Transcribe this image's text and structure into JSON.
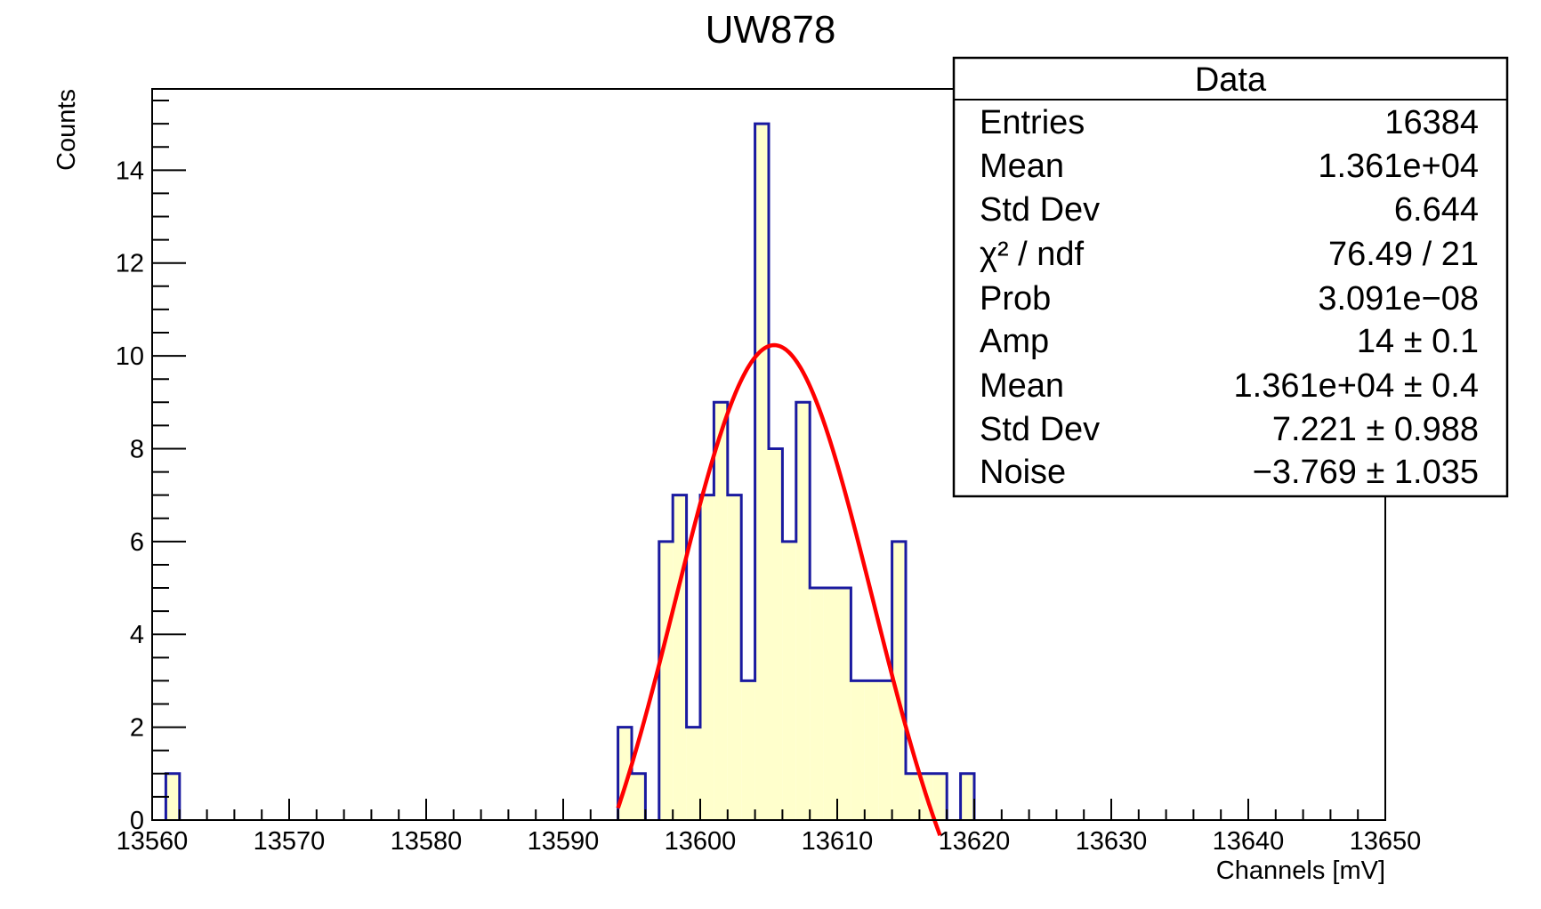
{
  "chart_data": {
    "type": "histogram",
    "title": "UW878",
    "xlabel": "Channels [mV]",
    "ylabel": "Counts",
    "xlim": [
      13560,
      13650
    ],
    "ylim": [
      0,
      15.75
    ],
    "x_ticks": [
      "13560",
      "13570",
      "13580",
      "13590",
      "13600",
      "13610",
      "13620",
      "13630",
      "13640",
      "13650"
    ],
    "y_ticks": [
      "0",
      "2",
      "4",
      "6",
      "8",
      "10",
      "12",
      "14"
    ],
    "bin_width": 1,
    "bins": [
      {
        "x": 13561,
        "count": 1
      },
      {
        "x": 13594,
        "count": 2
      },
      {
        "x": 13595,
        "count": 1
      },
      {
        "x": 13597,
        "count": 6
      },
      {
        "x": 13598,
        "count": 7
      },
      {
        "x": 13599,
        "count": 2
      },
      {
        "x": 13600,
        "count": 7
      },
      {
        "x": 13601,
        "count": 9
      },
      {
        "x": 13602,
        "count": 7
      },
      {
        "x": 13603,
        "count": 3
      },
      {
        "x": 13604,
        "count": 15
      },
      {
        "x": 13605,
        "count": 8
      },
      {
        "x": 13606,
        "count": 6
      },
      {
        "x": 13607,
        "count": 9
      },
      {
        "x": 13608,
        "count": 5
      },
      {
        "x": 13609,
        "count": 5
      },
      {
        "x": 13610,
        "count": 5
      },
      {
        "x": 13611,
        "count": 3
      },
      {
        "x": 13612,
        "count": 3
      },
      {
        "x": 13613,
        "count": 3
      },
      {
        "x": 13614,
        "count": 6
      },
      {
        "x": 13615,
        "count": 1
      },
      {
        "x": 13616,
        "count": 1
      },
      {
        "x": 13617,
        "count": 1
      },
      {
        "x": 13619,
        "count": 1
      }
    ],
    "fit": {
      "function": "gaussian + constant",
      "amp": 14,
      "mean": 13605.4,
      "sigma": 7.221,
      "noise": -3.769,
      "x_range": [
        13594,
        13617.5
      ]
    },
    "colors": {
      "hist_line": "#1a1aa0",
      "hist_fill": "#ffffcc",
      "fit": "#ff0000"
    },
    "legend_placement": "top-right",
    "grid": false
  },
  "stats": {
    "header": "Data",
    "rows": [
      {
        "label": "Entries",
        "value": "16384"
      },
      {
        "label": "Mean",
        "value": "1.361e+04"
      },
      {
        "label": "Std Dev",
        "value": "6.644"
      },
      {
        "label": "χ² / ndf",
        "value": "76.49 / 21"
      },
      {
        "label": "Prob",
        "value": "3.091e−08"
      },
      {
        "label": "Amp",
        "value": "14 ± 0.1"
      },
      {
        "label": "Mean",
        "value": "1.361e+04 ± 0.4"
      },
      {
        "label": "Std Dev",
        "value": "7.221 ± 0.988"
      },
      {
        "label": "Noise",
        "value": "−3.769 ± 1.035"
      }
    ]
  }
}
